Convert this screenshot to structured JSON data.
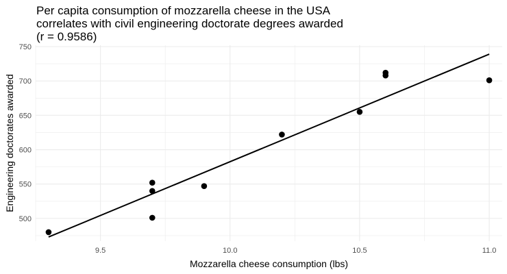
{
  "title_lines": [
    "Per capita consumption of mozzarella cheese in the USA",
    "correlates with civil engineering doctorate degrees awarded",
    "(r = 0.9586)"
  ],
  "chart_data": {
    "type": "scatter",
    "title": "Per capita consumption of mozzarella cheese in the USA correlates with civil engineering doctorate degrees awarded (r = 0.9586)",
    "xlabel": "Mozzarella cheese consumption (lbs)",
    "ylabel": "Engineering doctorates awarded",
    "xlim": [
      9.25,
      11.05
    ],
    "ylim": [
      467,
      752
    ],
    "xticks": [
      9.5,
      10.0,
      10.5,
      11.0
    ],
    "xtick_labels": [
      "9.5",
      "10.0",
      "10.5",
      "11.0"
    ],
    "yticks": [
      500,
      550,
      600,
      650,
      700,
      750
    ],
    "ytick_labels": [
      "500",
      "550",
      "600",
      "650",
      "700",
      "750"
    ],
    "grid": true,
    "legend": "none",
    "point_color": "#000000",
    "line_color": "#000000",
    "background_color": "#ffffff",
    "grid_color": "#ebebeb",
    "points": [
      {
        "x": 9.3,
        "y": 480
      },
      {
        "x": 9.7,
        "y": 501
      },
      {
        "x": 9.7,
        "y": 540
      },
      {
        "x": 9.7,
        "y": 552
      },
      {
        "x": 9.9,
        "y": 547
      },
      {
        "x": 10.2,
        "y": 622
      },
      {
        "x": 10.5,
        "y": 655
      },
      {
        "x": 10.6,
        "y": 708
      },
      {
        "x": 10.6,
        "y": 712
      },
      {
        "x": 11.0,
        "y": 701
      }
    ],
    "trend_line": {
      "x": [
        9.3,
        11.0
      ],
      "y": [
        473,
        739
      ]
    }
  }
}
